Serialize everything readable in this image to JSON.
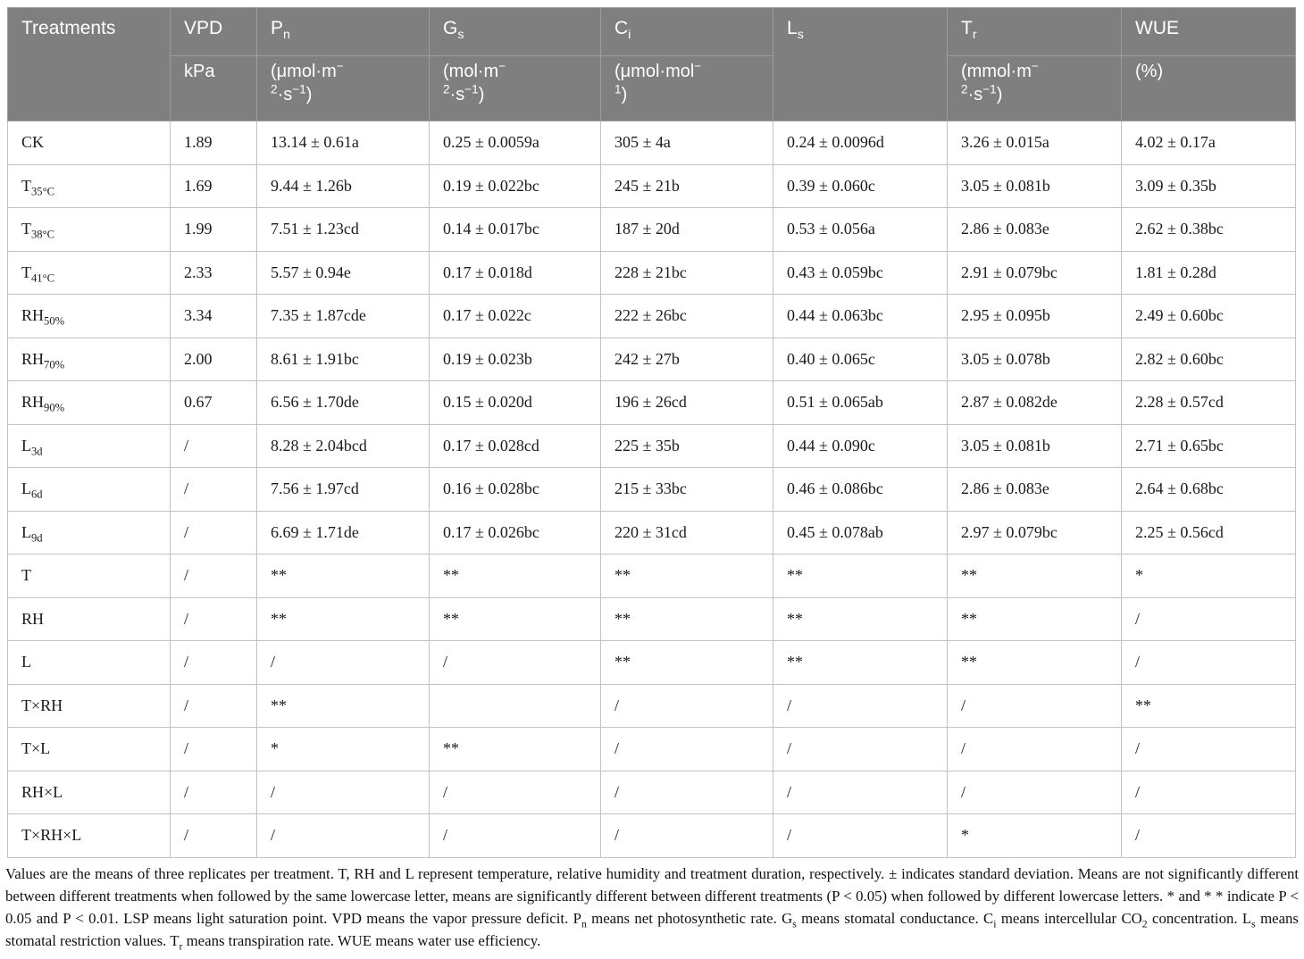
{
  "colors": {
    "header_bg": "#7f7f7f",
    "header_text": "#ffffff",
    "header_border": "#9d9d9d",
    "body_border": "#c2c2c2"
  },
  "table": {
    "columns": [
      {
        "id": "treatments",
        "label": [
          [
            "Treatments",
            ""
          ]
        ],
        "span_both_rows": true
      },
      {
        "id": "vpd",
        "label": [
          [
            "VPD",
            ""
          ]
        ],
        "unit": [
          [
            "kPa",
            ""
          ]
        ]
      },
      {
        "id": "pn",
        "label": [
          [
            "P",
            ""
          ],
          [
            "n",
            "sub"
          ]
        ],
        "unit": [
          [
            "(μmol·m",
            ""
          ],
          [
            "−",
            "sup"
          ],
          [
            "",
            "br"
          ],
          [
            "2",
            "sup"
          ],
          [
            "·s",
            ""
          ],
          [
            "−1",
            "sup"
          ],
          [
            ")",
            ""
          ]
        ]
      },
      {
        "id": "gs",
        "label": [
          [
            "G",
            ""
          ],
          [
            "s",
            "sub"
          ]
        ],
        "unit": [
          [
            "(mol·m",
            ""
          ],
          [
            "−",
            "sup"
          ],
          [
            "",
            "br"
          ],
          [
            "2",
            "sup"
          ],
          [
            "·s",
            ""
          ],
          [
            "−1",
            "sup"
          ],
          [
            ")",
            ""
          ]
        ]
      },
      {
        "id": "ci",
        "label": [
          [
            "C",
            ""
          ],
          [
            "i",
            "sub"
          ]
        ],
        "unit": [
          [
            "(μmol·mol",
            ""
          ],
          [
            "−",
            "sup"
          ],
          [
            "",
            "br"
          ],
          [
            "1",
            "sup"
          ],
          [
            ")",
            ""
          ]
        ]
      },
      {
        "id": "ls",
        "label": [
          [
            "L",
            ""
          ],
          [
            "s",
            "sub"
          ]
        ],
        "span_both_rows": true
      },
      {
        "id": "tr",
        "label": [
          [
            "T",
            ""
          ],
          [
            "r",
            "sub"
          ]
        ],
        "unit": [
          [
            "(mmol·m",
            ""
          ],
          [
            "−",
            "sup"
          ],
          [
            "",
            "br"
          ],
          [
            "2",
            "sup"
          ],
          [
            "·s",
            ""
          ],
          [
            "−1",
            "sup"
          ],
          [
            ")",
            ""
          ]
        ]
      },
      {
        "id": "wue",
        "label": [
          [
            "WUE",
            ""
          ]
        ],
        "unit": [
          [
            "(%)",
            ""
          ]
        ]
      }
    ],
    "rows": [
      {
        "label": [
          [
            "CK",
            ""
          ]
        ],
        "values": [
          "1.89",
          "13.14 ± 0.61a",
          "0.25 ± 0.0059a",
          "305 ± 4a",
          "0.24 ± 0.0096d",
          "3.26 ± 0.015a",
          "4.02 ± 0.17a"
        ]
      },
      {
        "label": [
          [
            "T",
            ""
          ],
          [
            "35°C",
            "sub"
          ]
        ],
        "values": [
          "1.69",
          "9.44 ± 1.26b",
          "0.19 ± 0.022bc",
          "245 ± 21b",
          "0.39 ± 0.060c",
          "3.05 ± 0.081b",
          "3.09 ± 0.35b"
        ]
      },
      {
        "label": [
          [
            "T",
            ""
          ],
          [
            "38°C",
            "sub"
          ]
        ],
        "values": [
          "1.99",
          "7.51 ± 1.23cd",
          "0.14 ± 0.017bc",
          "187 ± 20d",
          "0.53 ± 0.056a",
          "2.86 ± 0.083e",
          "2.62 ± 0.38bc"
        ]
      },
      {
        "label": [
          [
            "T",
            ""
          ],
          [
            "41°C",
            "sub"
          ]
        ],
        "values": [
          "2.33",
          "5.57 ± 0.94e",
          "0.17 ± 0.018d",
          "228 ± 21bc",
          "0.43 ± 0.059bc",
          "2.91 ± 0.079bc",
          "1.81 ± 0.28d"
        ]
      },
      {
        "label": [
          [
            "RH",
            ""
          ],
          [
            "50%",
            "sub"
          ]
        ],
        "values": [
          "3.34",
          "7.35 ± 1.87cde",
          "0.17 ± 0.022c",
          "222 ± 26bc",
          "0.44 ± 0.063bc",
          "2.95 ± 0.095b",
          "2.49 ± 0.60bc"
        ]
      },
      {
        "label": [
          [
            "RH",
            ""
          ],
          [
            "70%",
            "sub"
          ]
        ],
        "values": [
          "2.00",
          "8.61 ± 1.91bc",
          "0.19 ± 0.023b",
          "242 ± 27b",
          "0.40 ± 0.065c",
          "3.05 ± 0.078b",
          "2.82 ± 0.60bc"
        ]
      },
      {
        "label": [
          [
            "RH",
            ""
          ],
          [
            "90%",
            "sub"
          ]
        ],
        "values": [
          "0.67",
          "6.56 ± 1.70de",
          "0.15 ± 0.020d",
          "196 ± 26cd",
          "0.51 ± 0.065ab",
          "2.87 ± 0.082de",
          "2.28 ± 0.57cd"
        ]
      },
      {
        "label": [
          [
            "L",
            ""
          ],
          [
            "3d",
            "sub"
          ]
        ],
        "values": [
          "/",
          "8.28 ± 2.04bcd",
          "0.17 ± 0.028cd",
          "225 ± 35b",
          "0.44 ± 0.090c",
          "3.05 ± 0.081b",
          "2.71 ± 0.65bc"
        ]
      },
      {
        "label": [
          [
            "L",
            ""
          ],
          [
            "6d",
            "sub"
          ]
        ],
        "values": [
          "/",
          "7.56 ± 1.97cd",
          "0.16 ± 0.028bc",
          "215 ± 33bc",
          "0.46 ± 0.086bc",
          "2.86 ± 0.083e",
          "2.64 ± 0.68bc"
        ]
      },
      {
        "label": [
          [
            "L",
            ""
          ],
          [
            "9d",
            "sub"
          ]
        ],
        "values": [
          "/",
          "6.69 ± 1.71de",
          "0.17 ± 0.026bc",
          "220 ± 31cd",
          "0.45 ± 0.078ab",
          "2.97 ± 0.079bc",
          "2.25 ± 0.56cd"
        ]
      },
      {
        "label": [
          [
            "T",
            ""
          ]
        ],
        "values": [
          "/",
          "**",
          "**",
          "**",
          "**",
          "**",
          "*"
        ]
      },
      {
        "label": [
          [
            "RH",
            ""
          ]
        ],
        "values": [
          "/",
          "**",
          "**",
          "**",
          "**",
          "**",
          "/"
        ]
      },
      {
        "label": [
          [
            "L",
            ""
          ]
        ],
        "values": [
          "/",
          "/",
          "/",
          "**",
          "**",
          "**",
          "/"
        ]
      },
      {
        "label": [
          [
            "T×RH",
            ""
          ]
        ],
        "values": [
          "/",
          "**",
          "",
          "/",
          "/",
          "/",
          "**"
        ]
      },
      {
        "label": [
          [
            "T×L",
            ""
          ]
        ],
        "values": [
          "/",
          "*",
          "**",
          "/",
          "/",
          "/",
          "/"
        ]
      },
      {
        "label": [
          [
            "RH×L",
            ""
          ]
        ],
        "values": [
          "/",
          "/",
          "/",
          "/",
          "/",
          "/",
          "/"
        ]
      },
      {
        "label": [
          [
            "T×RH×L",
            ""
          ]
        ],
        "values": [
          "/",
          "/",
          "/",
          "/",
          "/",
          "*",
          "/"
        ]
      }
    ]
  },
  "footnote": [
    [
      "Values are the means of three replicates per treatment. T, RH and L represent temperature, relative humidity and treatment duration, respectively. ± indicates standard deviation. Means are not significantly different between different treatments when followed by the same lowercase letter, means are significantly different between different treatments (P < 0.05) when followed by different lowercase letters. * and * * indicate P < 0.05 and P < 0.01. LSP means light saturation point. VPD means the vapor pressure deficit. P",
      ""
    ],
    [
      "n",
      "sub"
    ],
    [
      " means net photosynthetic rate. G",
      ""
    ],
    [
      "s",
      "sub"
    ],
    [
      " means stomatal conductance. C",
      ""
    ],
    [
      "i",
      "sub"
    ],
    [
      " means intercellular CO",
      ""
    ],
    [
      "2",
      "sub"
    ],
    [
      " concentration. L",
      ""
    ],
    [
      "s",
      "sub"
    ],
    [
      " means stomatal restriction values. T",
      ""
    ],
    [
      "r",
      "sub"
    ],
    [
      " means transpiration rate. WUE means water use efficiency.",
      ""
    ]
  ]
}
